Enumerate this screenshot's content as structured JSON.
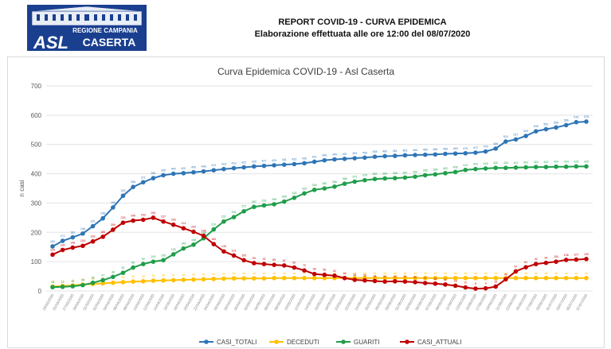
{
  "header": {
    "logo": {
      "top_text": "REGIONE CAMPANIA",
      "big_text": "ASL",
      "side_text": "CASERTA"
    },
    "report_title": "REPORT COVID-19 - CURVA EPIDEMICA",
    "report_subtitle": "Elaborazione effettuata alle ore 12:00 del 08/07/2020"
  },
  "colors": {
    "casi_totali": "#2e75b6",
    "deceduti": "#ffc000",
    "guariti": "#1f9e4a",
    "casi_attuali": "#c00000"
  },
  "chart_data": {
    "type": "line",
    "title": "Curva Epidemica COVID-19 - Asl Caserta",
    "ylabel": "n casi",
    "xlabel": "",
    "ylim": [
      0,
      700
    ],
    "yticks": [
      0,
      100,
      200,
      300,
      400,
      500,
      600,
      700
    ],
    "grid": true,
    "legend_position": "bottom",
    "x": [
      "23/03/2020",
      "25/03/2020",
      "27/03/2020",
      "29/03/2020",
      "31/03/2020",
      "02/04/2020",
      "04/04/2020",
      "06/04/2020",
      "08/04/2020",
      "10/04/2020",
      "12/04/2020",
      "14/04/2020",
      "16/04/2020",
      "18/04/2020",
      "20/04/2020",
      "22/04/2020",
      "24/04/2020",
      "26/04/2020",
      "28/04/2020",
      "30/04/2020",
      "02/05/2020",
      "04/05/2020",
      "06/05/2020",
      "08/05/2020",
      "10/05/2020",
      "12/05/2020",
      "14/05/2020",
      "16/05/2020",
      "18/05/2020",
      "20/05/2020",
      "22/05/2020",
      "24/05/2020",
      "26/05/2020",
      "28/05/2020",
      "30/05/2020",
      "01/06/2020",
      "03/06/2020",
      "05/06/2020",
      "07/06/2020",
      "09/06/2020",
      "11/06/2020",
      "13/06/2020",
      "15/06/2020",
      "17/06/2020",
      "19/06/2020",
      "21/06/2020",
      "23/06/2020",
      "25/06/2020",
      "27/06/2020",
      "29/06/2020",
      "01/07/2020",
      "03/07/2020",
      "05/07/2020",
      "07/07/2020"
    ],
    "series": [
      {
        "name": "CASI_TOTALI",
        "values": [
          152,
          171,
          183,
          196,
          221,
          248,
          285,
          325,
          355,
          371,
          385,
          395,
          400,
          402,
          405,
          408,
          412,
          416,
          419,
          422,
          425,
          427,
          429,
          431,
          433,
          436,
          441,
          446,
          449,
          451,
          453,
          455,
          458,
          460,
          461,
          463,
          464,
          465,
          466,
          468,
          469,
          470,
          472,
          476,
          486,
          510,
          517,
          529,
          545,
          552,
          558,
          566,
          576,
          578
        ]
      },
      {
        "name": "DECEDUTI",
        "values": [
          15,
          17,
          19,
          22,
          24,
          26,
          28,
          30,
          32,
          33,
          35,
          36,
          37,
          38,
          39,
          40,
          41,
          42,
          43,
          43,
          43,
          43,
          44,
          44,
          44,
          44,
          44,
          44,
          44,
          44,
          44,
          44,
          44,
          44,
          44,
          44,
          44,
          44,
          44,
          44,
          44,
          44,
          44,
          44,
          44,
          44,
          44,
          44,
          44,
          44,
          44,
          44,
          44,
          44
        ]
      },
      {
        "name": "GUARITI",
        "values": [
          13,
          14,
          16,
          20,
          28,
          37,
          48,
          62,
          80,
          92,
          100,
          105,
          125,
          145,
          158,
          180,
          210,
          237,
          252,
          272,
          287,
          292,
          296,
          305,
          318,
          333,
          345,
          350,
          356,
          366,
          373,
          378,
          382,
          384,
          385,
          387,
          390,
          395,
          398,
          402,
          406,
          413,
          416,
          418,
          420,
          420,
          421,
          422,
          423,
          423,
          424,
          424,
          425,
          425
        ]
      },
      {
        "name": "CASI_ATTUALI",
        "values": [
          124,
          140,
          148,
          154,
          169,
          185,
          209,
          233,
          240,
          243,
          250,
          237,
          226,
          214,
          202,
          188,
          160,
          135,
          121,
          105,
          95,
          92,
          89,
          87,
          80,
          70,
          58,
          55,
          52,
          44,
          38,
          36,
          34,
          32,
          33,
          32,
          30,
          27,
          25,
          22,
          18,
          12,
          8,
          9,
          15,
          40,
          67,
          81,
          92,
          96,
          100,
          106,
          107,
          109
        ]
      }
    ]
  },
  "legend": {
    "items": [
      "CASI_TOTALI",
      "DECEDUTI",
      "GUARITI",
      "CASI_ATTUALI"
    ]
  }
}
